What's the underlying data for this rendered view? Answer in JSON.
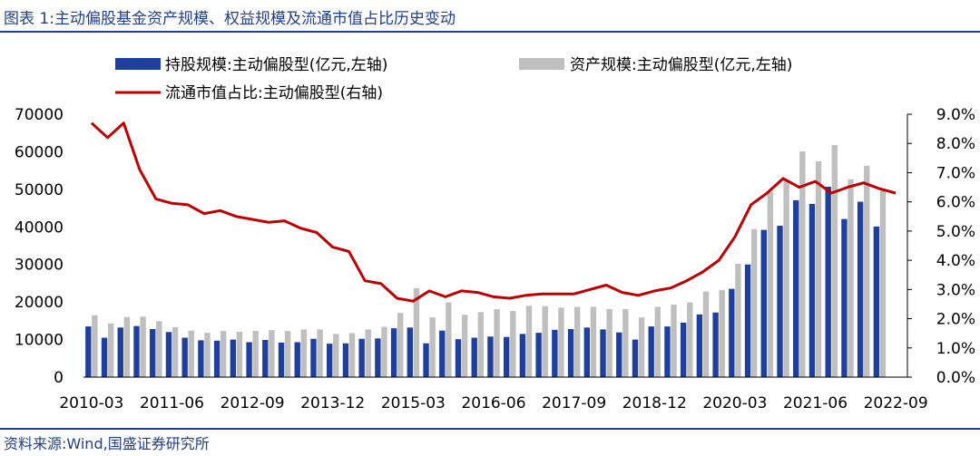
{
  "header": {
    "title": "图表 1:主动偏股基金资产规模、权益规模及流通市值占比历史变动"
  },
  "footer": {
    "source": "资料来源:Wind,国盛证券研究所"
  },
  "colors": {
    "holding_bar": "#1f3f9c",
    "asset_bar": "#bfbfbf",
    "ratio_line": "#c00000",
    "header_blue": "#1f3f8f"
  },
  "chart_data": {
    "type": "bar",
    "title": "",
    "x": [
      "2010-03",
      "2010-06",
      "2010-09",
      "2010-12",
      "2011-03",
      "2011-06",
      "2011-09",
      "2011-12",
      "2012-03",
      "2012-06",
      "2012-09",
      "2012-12",
      "2013-03",
      "2013-06",
      "2013-09",
      "2013-12",
      "2014-03",
      "2014-06",
      "2014-09",
      "2014-12",
      "2015-03",
      "2015-06",
      "2015-09",
      "2015-12",
      "2016-03",
      "2016-06",
      "2016-09",
      "2016-12",
      "2017-03",
      "2017-06",
      "2017-09",
      "2017-12",
      "2018-03",
      "2018-06",
      "2018-09",
      "2018-12",
      "2019-03",
      "2019-06",
      "2019-09",
      "2019-12",
      "2020-03",
      "2020-06",
      "2020-09",
      "2020-12",
      "2021-03",
      "2021-06",
      "2021-09",
      "2021-12",
      "2022-03",
      "2022-06",
      "2022-09"
    ],
    "x_tick_labels": [
      "2010-03",
      "2011-06",
      "2012-09",
      "2013-12",
      "2015-03",
      "2016-06",
      "2017-09",
      "2018-12",
      "2020-03",
      "2021-06",
      "2022-09"
    ],
    "series": [
      {
        "name": "持股规模:主动偏股型(亿元,左轴)",
        "type": "bar",
        "axis": "left",
        "values": [
          13500,
          10500,
          13200,
          13600,
          12800,
          12000,
          10500,
          9800,
          9700,
          10000,
          9300,
          9900,
          9200,
          9300,
          10200,
          8900,
          9000,
          10200,
          10300,
          13000,
          13200,
          9000,
          12400,
          10100,
          10500,
          10800,
          10700,
          11500,
          11800,
          12600,
          12800,
          13200,
          12700,
          11900,
          10000,
          13500,
          13500,
          14500,
          16700,
          17200,
          23500,
          30000,
          39200,
          40300,
          47100,
          46100,
          50700,
          42100,
          46700,
          40100,
          0
        ]
      },
      {
        "name": "资产规模:主动偏股型(亿元,左轴)",
        "type": "bar",
        "axis": "left",
        "values": [
          16500,
          14300,
          16000,
          16100,
          14900,
          13300,
          12400,
          11800,
          12300,
          12100,
          12300,
          12500,
          12300,
          12700,
          12700,
          11500,
          11700,
          12700,
          13400,
          17100,
          23700,
          15900,
          19900,
          16600,
          17300,
          18100,
          17600,
          19000,
          18900,
          18500,
          18700,
          18700,
          18100,
          18100,
          15900,
          18700,
          19300,
          19900,
          22800,
          23200,
          30200,
          39400,
          49400,
          52400,
          60100,
          57500,
          61800,
          52700,
          56300,
          50100,
          0
        ]
      },
      {
        "name": "流通市值占比:主动偏股型(右轴)",
        "type": "line",
        "axis": "right",
        "values": [
          8.7,
          8.2,
          8.7,
          7.1,
          6.1,
          5.95,
          5.9,
          5.6,
          5.7,
          5.5,
          5.4,
          5.3,
          5.35,
          5.1,
          4.95,
          4.45,
          4.3,
          3.3,
          3.2,
          2.7,
          2.6,
          2.95,
          2.75,
          2.95,
          2.9,
          2.75,
          2.7,
          2.8,
          2.85,
          2.85,
          2.85,
          3.0,
          3.15,
          2.9,
          2.8,
          2.95,
          3.05,
          3.3,
          3.6,
          4.0,
          4.8,
          5.9,
          6.3,
          6.8,
          6.5,
          6.7,
          6.3,
          6.5,
          6.65,
          6.45,
          6.3
        ]
      }
    ],
    "left_axis": {
      "ylim": [
        0,
        70000
      ],
      "ticks": [
        "0",
        "10000",
        "20000",
        "30000",
        "40000",
        "50000",
        "60000",
        "70000"
      ]
    },
    "right_axis": {
      "ylim": [
        0,
        9.0
      ],
      "unit": "%",
      "ticks": [
        "0.0%",
        "1.0%",
        "2.0%",
        "3.0%",
        "4.0%",
        "5.0%",
        "6.0%",
        "7.0%",
        "8.0%",
        "9.0%"
      ]
    },
    "legend": [
      "持股规模:主动偏股型(亿元,左轴)",
      "资产规模:主动偏股型(亿元,左轴)",
      "流通市值占比:主动偏股型(右轴)"
    ],
    "legend_placement": "top",
    "grid": false
  }
}
